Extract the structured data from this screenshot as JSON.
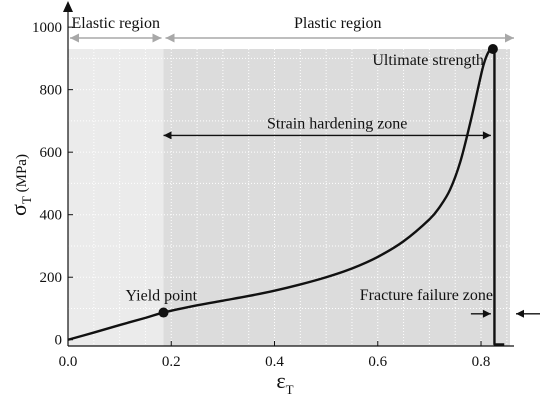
{
  "chart_data": {
    "type": "line",
    "xlabel": "ε",
    "xlabel_sub": "T",
    "ylabel": "σ",
    "ylabel_sub": "T",
    "ylabel_unit": "(MPa)",
    "xlim": [
      0,
      0.86
    ],
    "ylim": [
      -20,
      1010
    ],
    "x_ticks": [
      0.0,
      0.2,
      0.4,
      0.6,
      0.8
    ],
    "x_tick_labels": [
      "0.0",
      "0.2",
      "0.4",
      "0.6",
      "0.8"
    ],
    "y_ticks": [
      0,
      200,
      400,
      600,
      800,
      1000
    ],
    "y_tick_labels": [
      "0",
      "200",
      "400",
      "600",
      "800",
      "1000"
    ],
    "curve": {
      "x": [
        0.0,
        0.05,
        0.1,
        0.15,
        0.185,
        0.25,
        0.3,
        0.35,
        0.4,
        0.45,
        0.5,
        0.55,
        0.6,
        0.65,
        0.7,
        0.72,
        0.74,
        0.76,
        0.78,
        0.795,
        0.805,
        0.815,
        0.823,
        0.826,
        0.826,
        0.845
      ],
      "y": [
        0,
        23,
        47,
        70,
        87,
        110,
        125,
        140,
        157,
        177,
        200,
        228,
        265,
        315,
        385,
        425,
        480,
        570,
        700,
        810,
        880,
        922,
        930,
        925,
        -15,
        -15
      ]
    },
    "points": [
      {
        "label": "Yield point",
        "x": 0.185,
        "y": 87
      },
      {
        "label": "Ultimate strength",
        "x": 0.823,
        "y": 930
      }
    ],
    "regions": [
      {
        "label": "Elastic region",
        "x_range": [
          0.0,
          0.185
        ],
        "shade": "#ebebeb"
      },
      {
        "label": "Plastic region",
        "x_range": [
          0.185,
          0.86
        ],
        "shade": "#dcdcdc"
      }
    ],
    "zones": [
      {
        "label": "Strain hardening zone",
        "x_range": [
          0.185,
          0.823
        ],
        "y": 500
      },
      {
        "label": "Fracture failure zone",
        "x_range": [
          0.823,
          0.86
        ],
        "y": 115
      }
    ],
    "region_shade_top": 930,
    "grid": true
  }
}
